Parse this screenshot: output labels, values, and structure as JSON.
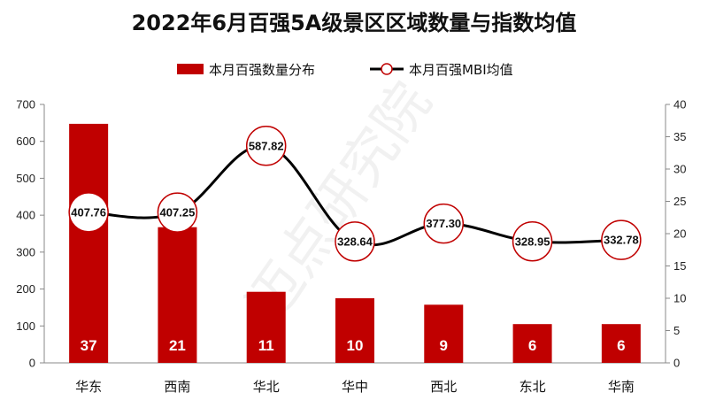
{
  "chart_data": {
    "type": "bar",
    "title": "2022年6月百强5A级景区区域数量与指数均值",
    "categories": [
      "华东",
      "西南",
      "华北",
      "华中",
      "西北",
      "东北",
      "华南"
    ],
    "series": [
      {
        "name": "本月百强数量分布",
        "type": "bar",
        "axis": "right",
        "values": [
          37,
          21,
          11,
          10,
          9,
          6,
          6
        ],
        "labels": [
          "37",
          "21",
          "11",
          "10",
          "9",
          "6",
          "6"
        ],
        "color": "#c00000"
      },
      {
        "name": "本月百强MBI均值",
        "type": "line",
        "axis": "left",
        "values": [
          407.76,
          407.25,
          587.82,
          328.64,
          377.3,
          328.95,
          332.78
        ],
        "labels": [
          "407.76",
          "407.25",
          "587.82",
          "328.64",
          "377.30",
          "328.95",
          "332.78"
        ],
        "color": "#000000",
        "marker_edge_color": "#c00000"
      }
    ],
    "y_left": {
      "ylim": [
        0,
        700
      ],
      "ticks": [
        "0",
        "100",
        "200",
        "300",
        "400",
        "500",
        "600",
        "700"
      ]
    },
    "y_right": {
      "ylim": [
        0,
        40
      ],
      "ticks": [
        "0",
        "5",
        "10",
        "15",
        "20",
        "25",
        "30",
        "35",
        "40"
      ]
    },
    "legend_position": "top-center",
    "grid": false
  },
  "watermark": "迈点研究院"
}
